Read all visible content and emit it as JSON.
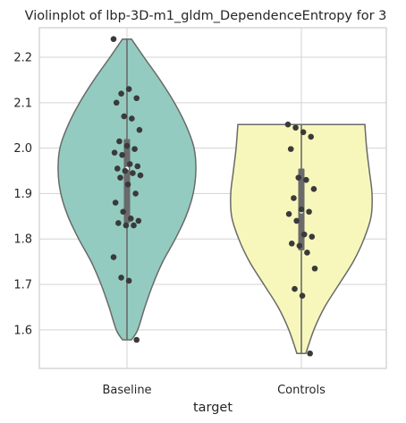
{
  "chart_data": {
    "type": "violin",
    "title": "Violinplot of lbp-3D-m1_gldm_DependenceEntropy for 3",
    "xlabel": "target",
    "ylabel": "",
    "categories": [
      "Baseline",
      "Controls"
    ],
    "ylim": [
      1.515,
      2.265
    ],
    "yticks": [
      1.6,
      1.7,
      1.8,
      1.9,
      2.0,
      2.1,
      2.2
    ],
    "ytick_labels": [
      "1.6",
      "1.7",
      "1.8",
      "1.9",
      "2.0",
      "2.1",
      "2.2"
    ],
    "grid": true,
    "colors": {
      "Baseline": "#93cbc0",
      "Controls": "#f7f7bc",
      "edge": "#6a6a6a",
      "points": "#3a3a3a",
      "grid": "#d3d3d3",
      "median": "#ffffff"
    },
    "series": [
      {
        "category": "Baseline",
        "min": 1.578,
        "max": 2.24,
        "q1": 1.835,
        "median": 1.955,
        "q3": 2.02,
        "density": [
          [
            1.578,
            5
          ],
          [
            1.6,
            12
          ],
          [
            1.65,
            20
          ],
          [
            1.7,
            29
          ],
          [
            1.75,
            40
          ],
          [
            1.8,
            54
          ],
          [
            1.85,
            66
          ],
          [
            1.9,
            74
          ],
          [
            1.95,
            77
          ],
          [
            2.0,
            75
          ],
          [
            2.05,
            66
          ],
          [
            2.1,
            53
          ],
          [
            2.15,
            37
          ],
          [
            2.2,
            19
          ],
          [
            2.24,
            5
          ]
        ],
        "points": [
          2.24,
          2.12,
          2.13,
          2.11,
          2.1,
          2.07,
          2.065,
          2.04,
          2.015,
          2.005,
          1.998,
          1.99,
          1.985,
          1.965,
          1.96,
          1.955,
          1.95,
          1.945,
          1.94,
          1.935,
          1.92,
          1.9,
          1.88,
          1.86,
          1.845,
          1.84,
          1.835,
          1.83,
          1.83,
          1.76,
          1.715,
          1.708,
          1.578
        ]
      },
      {
        "category": "Controls",
        "min": 1.548,
        "max": 2.052,
        "q1": 1.775,
        "median": 1.86,
        "q3": 1.955,
        "density": [
          [
            1.548,
            5
          ],
          [
            1.6,
            14
          ],
          [
            1.65,
            26
          ],
          [
            1.7,
            42
          ],
          [
            1.75,
            58
          ],
          [
            1.8,
            70
          ],
          [
            1.85,
            78
          ],
          [
            1.9,
            79
          ],
          [
            1.95,
            76
          ],
          [
            2.0,
            73
          ],
          [
            2.052,
            71
          ]
        ],
        "points": [
          2.052,
          2.045,
          2.035,
          2.025,
          1.998,
          1.935,
          1.93,
          1.91,
          1.89,
          1.865,
          1.86,
          1.855,
          1.84,
          1.81,
          1.805,
          1.79,
          1.785,
          1.77,
          1.735,
          1.69,
          1.675,
          1.548
        ]
      }
    ]
  }
}
